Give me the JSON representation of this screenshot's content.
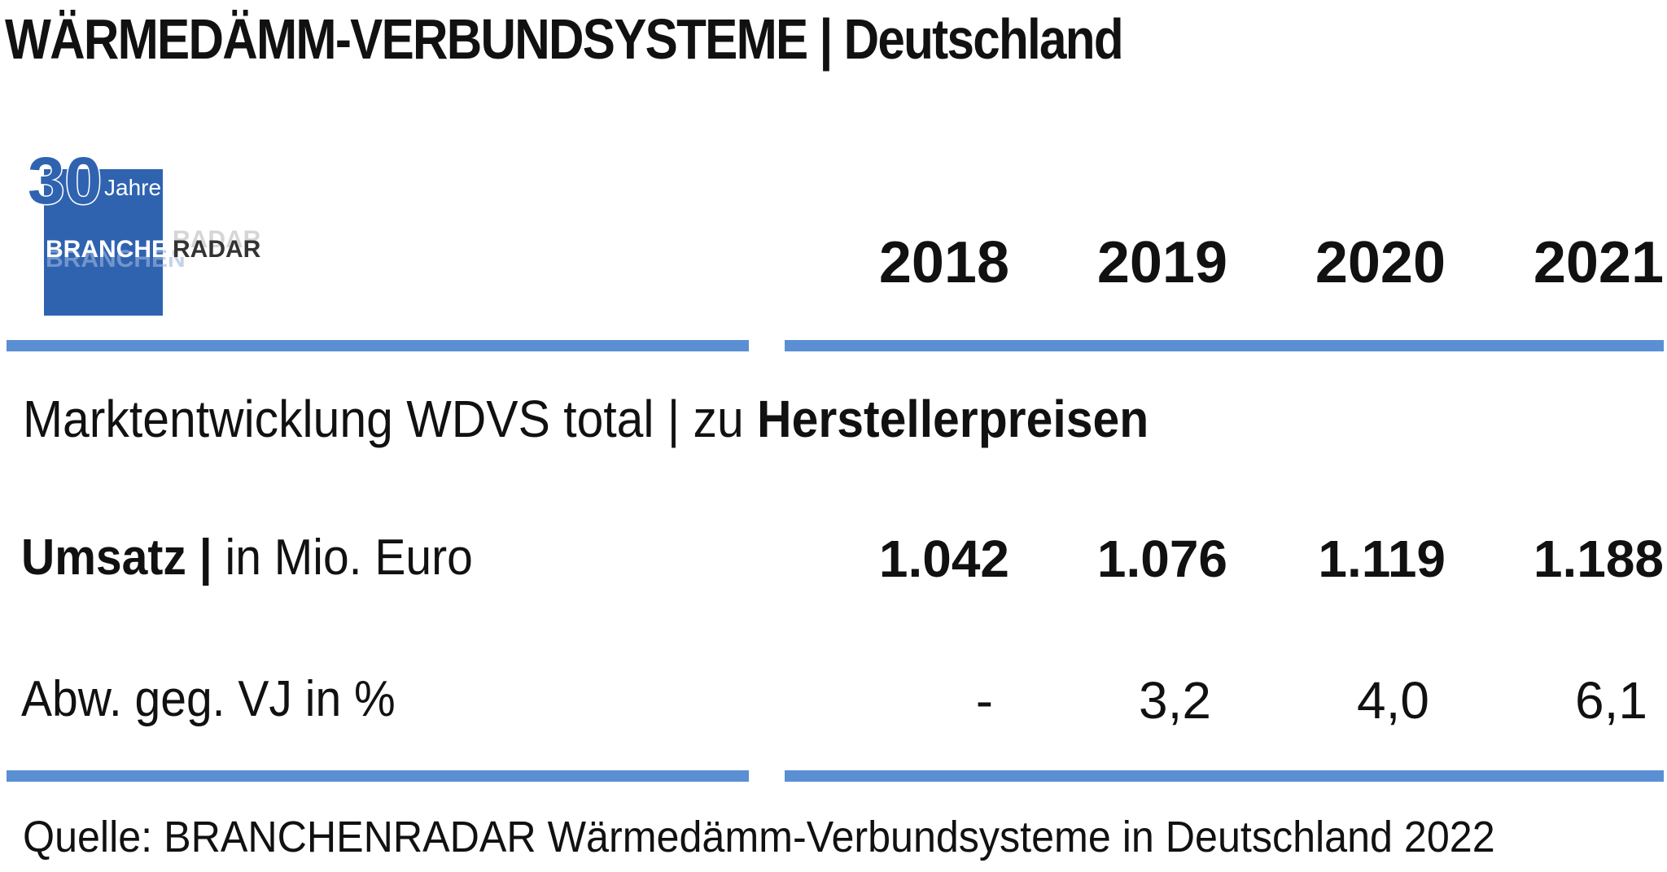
{
  "title": "WÄRMEDÄMM-VERBUNDSYSTEME | Deutschland",
  "logo": {
    "number": "30",
    "jahre": "Jahre",
    "brand": "BRANCHENRADAR",
    "brand_part1": "BRANCHEN",
    "brand_part2": "RADAR",
    "color": "#2f63b0"
  },
  "accent_color": "#5b8fd3",
  "subtitle": {
    "regular": "Marktentwicklung WDVS total | zu ",
    "bold": "Herstellerpreisen"
  },
  "chart_data": {
    "type": "table",
    "columns": [
      "2018",
      "2019",
      "2020",
      "2021"
    ],
    "rows": [
      {
        "label_bold": "Umsatz |",
        "label_regular": " in Mio. Euro",
        "values": [
          "1.042",
          "1.076",
          "1.119",
          "1.188"
        ],
        "bold": true
      },
      {
        "label_bold": "",
        "label_regular": "Abw. geg. VJ in %",
        "values": [
          "-",
          "3,2",
          "4,0",
          "6,1"
        ],
        "bold": false
      }
    ]
  },
  "source": "Quelle: BRANCHENRADAR Wärmedämm-Verbundsysteme in Deutschland 2022"
}
